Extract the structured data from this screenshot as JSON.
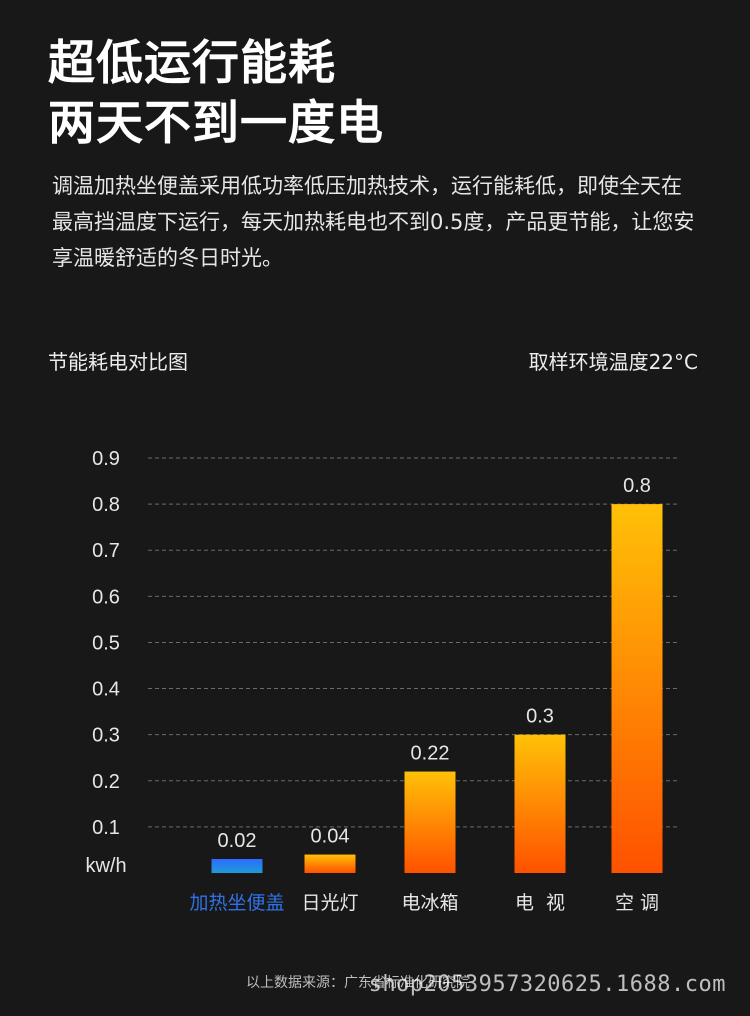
{
  "headline": {
    "line1": "超低运行能耗",
    "line2": "两天不到一度电"
  },
  "description": "调温加热坐便盖采用低功率低压加热技术，运行能耗低，即使全天在最高挡温度下运行，每天加热耗电也不到0.5度，产品更节能，让您安享温暖舒适的冬日时光。",
  "chart_caption": "节能耗电对比图",
  "sample_note": "取样环境温度22°C",
  "source_note": "以上数据来源：广东省标准化研究院",
  "watermark": "shop2053957320625.1688.com",
  "colors": {
    "background": "#181818",
    "bar_gradient_top": "#ffc107",
    "bar_gradient_bottom": "#ff5100",
    "highlight_bar_top": "#2d6cff",
    "highlight_bar_bottom": "#1f9bd6",
    "highlight_label": "#2e72e6",
    "grid": "#6b6b6b"
  },
  "chart_data": {
    "type": "bar",
    "title": "节能耗电对比图",
    "ylabel": "kw/h",
    "xlabel": "",
    "ylim": [
      0,
      0.9
    ],
    "yticks": [
      "0.1",
      "0.2",
      "0.3",
      "0.4",
      "0.5",
      "0.6",
      "0.7",
      "0.8",
      "0.9"
    ],
    "grid": true,
    "categories": [
      "加热坐便盖",
      "日光灯",
      "电冰箱",
      "电  视",
      "空 调"
    ],
    "values": [
      0.02,
      0.04,
      0.22,
      0.3,
      0.8
    ],
    "value_labels": [
      "0.02",
      "0.04",
      "0.22",
      "0.3",
      "0.8"
    ],
    "highlight_index": 0
  }
}
